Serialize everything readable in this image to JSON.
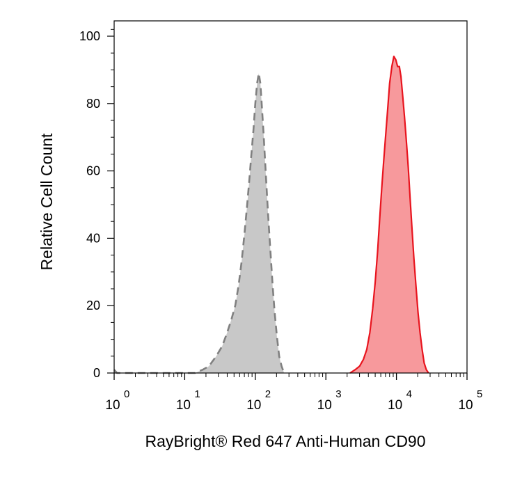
{
  "chart_data": {
    "type": "area",
    "xlabel": "RayBright® Red 647 Anti-Human CD90",
    "ylabel": "Relative Cell Count",
    "x_scale": "log",
    "xlim": [
      1,
      100000
    ],
    "ylim": [
      0,
      105
    ],
    "y_ticks": [
      "0",
      "20",
      "40",
      "60",
      "80",
      "100"
    ],
    "x_ticks": [
      {
        "base": "10",
        "exp": "0",
        "value": 1
      },
      {
        "base": "10",
        "exp": "1",
        "value": 10
      },
      {
        "base": "10",
        "exp": "2",
        "value": 100
      },
      {
        "base": "10",
        "exp": "3",
        "value": 1000
      },
      {
        "base": "10",
        "exp": "4",
        "value": 10000
      },
      {
        "base": "10",
        "exp": "5",
        "value": 100000
      }
    ],
    "grid": false,
    "series": [
      {
        "color": "#808080",
        "fill": "#c8c8c8",
        "line_style": "dashed",
        "points": [
          [
            1.0,
            1
          ],
          [
            1.1,
            0
          ],
          [
            14,
            0
          ],
          [
            18,
            1
          ],
          [
            22,
            2
          ],
          [
            28,
            5
          ],
          [
            34,
            8
          ],
          [
            40,
            12
          ],
          [
            46,
            16
          ],
          [
            52,
            20
          ],
          [
            58,
            26
          ],
          [
            64,
            33
          ],
          [
            70,
            41
          ],
          [
            76,
            49
          ],
          [
            82,
            57
          ],
          [
            88,
            65
          ],
          [
            94,
            72
          ],
          [
            100,
            80
          ],
          [
            106,
            86
          ],
          [
            112,
            89
          ],
          [
            118,
            86
          ],
          [
            124,
            79
          ],
          [
            132,
            70
          ],
          [
            142,
            58
          ],
          [
            152,
            47
          ],
          [
            164,
            36
          ],
          [
            176,
            26
          ],
          [
            188,
            18
          ],
          [
            202,
            11
          ],
          [
            218,
            5
          ],
          [
            236,
            2
          ],
          [
            256,
            0
          ]
        ]
      },
      {
        "color": "#e8141e",
        "fill": "#f7999c",
        "line_style": "solid",
        "points": [
          [
            2200,
            0
          ],
          [
            2600,
            1
          ],
          [
            3000,
            2
          ],
          [
            3400,
            4
          ],
          [
            3800,
            7
          ],
          [
            4200,
            12
          ],
          [
            4600,
            19
          ],
          [
            5000,
            27
          ],
          [
            5400,
            36
          ],
          [
            5800,
            46
          ],
          [
            6200,
            55
          ],
          [
            6600,
            63
          ],
          [
            7000,
            70
          ],
          [
            7500,
            78
          ],
          [
            8000,
            86
          ],
          [
            8600,
            91
          ],
          [
            9200,
            94
          ],
          [
            9800,
            93
          ],
          [
            10400,
            91
          ],
          [
            11000,
            91
          ],
          [
            11600,
            88
          ],
          [
            12300,
            82
          ],
          [
            13000,
            76
          ],
          [
            13800,
            69
          ],
          [
            14700,
            61
          ],
          [
            15600,
            52
          ],
          [
            16600,
            43
          ],
          [
            17700,
            34
          ],
          [
            18900,
            26
          ],
          [
            20200,
            18
          ],
          [
            21600,
            12
          ],
          [
            23100,
            7
          ],
          [
            24700,
            3
          ],
          [
            26500,
            1
          ],
          [
            28500,
            0
          ]
        ]
      }
    ]
  }
}
